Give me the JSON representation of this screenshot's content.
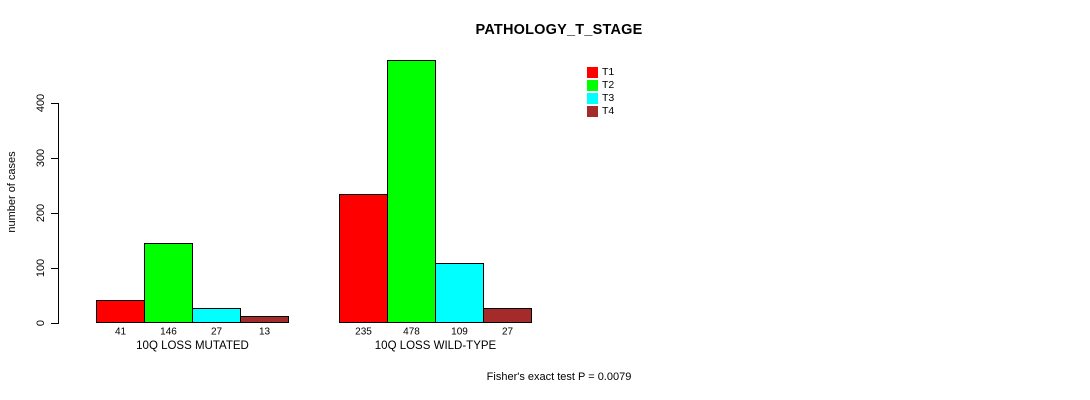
{
  "title": "PATHOLOGY_T_STAGE",
  "y_axis": {
    "label": "number of cases",
    "tick_labels": [
      "0",
      "100",
      "200",
      "300",
      "400"
    ]
  },
  "footnote": "Fisher's exact test P = 0.0079",
  "legend": {
    "items": [
      {
        "label": "T1",
        "color": "#ff0000"
      },
      {
        "label": "T2",
        "color": "#00ff00"
      },
      {
        "label": "T3",
        "color": "#00ffff"
      },
      {
        "label": "T4",
        "color": "#a52a2a"
      }
    ]
  },
  "chart_data": {
    "type": "bar",
    "grouped": true,
    "title": "PATHOLOGY_T_STAGE",
    "xlabel": "",
    "ylabel": "number of cases",
    "categories": [
      "10Q LOSS MUTATED",
      "10Q LOSS WILD-TYPE"
    ],
    "series": [
      {
        "name": "T1",
        "color": "#ff0000",
        "values": [
          41,
          235
        ]
      },
      {
        "name": "T2",
        "color": "#00ff00",
        "values": [
          146,
          478
        ]
      },
      {
        "name": "T3",
        "color": "#00ffff",
        "values": [
          27,
          109
        ]
      },
      {
        "name": "T4",
        "color": "#a52a2a",
        "values": [
          13,
          27
        ]
      }
    ],
    "yticks": [
      0,
      100,
      200,
      300,
      400
    ],
    "ylim": [
      0,
      480
    ],
    "grid": false,
    "bar_value_labels_shown": true,
    "legend_position": "top-right-inside",
    "annotation": "Fisher's exact test P = 0.0079"
  }
}
